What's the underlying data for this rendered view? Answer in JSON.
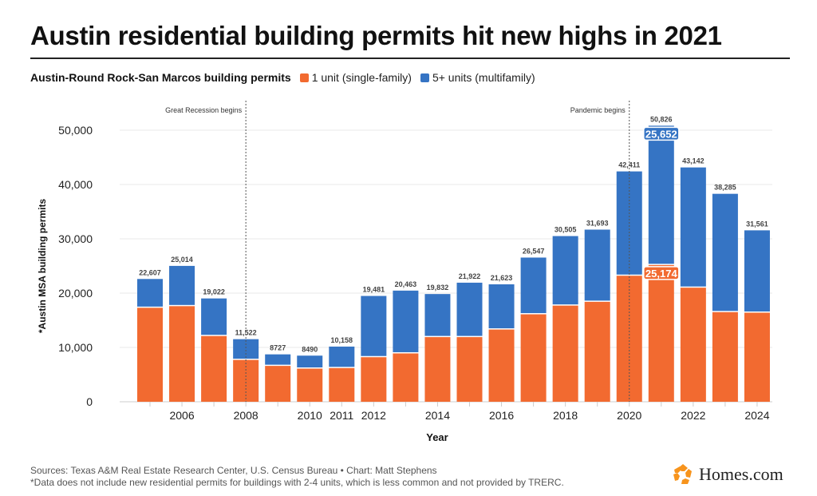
{
  "title": "Austin residential building permits hit new highs in 2021",
  "legend": {
    "title": "Austin-Round Rock-San Marcos building permits",
    "items": [
      {
        "label": "1 unit (single-family)",
        "color": "#f26a30"
      },
      {
        "label": "5+ units (multifamily)",
        "color": "#3574c4"
      }
    ]
  },
  "chart_data": {
    "type": "bar",
    "stacked": true,
    "xlabel": "Year",
    "ylabel": "*Austin MSA building permits",
    "ylim": [
      0,
      50000
    ],
    "yticks": [
      0,
      10000,
      20000,
      30000,
      40000,
      50000
    ],
    "ytick_labels": [
      "0",
      "10,000",
      "20,000",
      "30,000",
      "40,000",
      "50,000"
    ],
    "categories": [
      2005,
      2006,
      2007,
      2008,
      2009,
      2010,
      2011,
      2012,
      2013,
      2014,
      2015,
      2016,
      2017,
      2018,
      2019,
      2020,
      2021,
      2022,
      2023,
      2024
    ],
    "xtick_labels": {
      "2006": "2006",
      "2008": "2008",
      "2010": "2010",
      "2011": "2011",
      "2012": "2012",
      "2014": "2014",
      "2016": "2016",
      "2018": "2018",
      "2020": "2020",
      "2022": "2022",
      "2024": "2024"
    },
    "series": [
      {
        "name": "1 unit (single-family)",
        "color": "#f26a30",
        "values": [
          17300,
          17600,
          12100,
          7700,
          6600,
          6100,
          6200,
          8200,
          8900,
          11900,
          11900,
          13300,
          16100,
          17700,
          18400,
          23200,
          25174,
          21000,
          16500,
          16400
        ]
      },
      {
        "name": "5+ units (multifamily)",
        "color": "#3574c4",
        "values": [
          5307,
          7414,
          6922,
          3822,
          2127,
          2390,
          3958,
          11281,
          11563,
          7932,
          10022,
          8323,
          10447,
          12805,
          13293,
          19211,
          25652,
          22142,
          21785,
          15161
        ]
      }
    ],
    "totals": [
      22607,
      25014,
      19022,
      11522,
      8727,
      8490,
      10158,
      19481,
      20463,
      19832,
      21922,
      21623,
      26547,
      30505,
      31693,
      42411,
      50826,
      43142,
      38285,
      31561
    ],
    "total_labels": [
      "22,607",
      "25,014",
      "19,022",
      "11,522",
      "8727",
      "8490",
      "10,158",
      "19,481",
      "20,463",
      "19,832",
      "21,922",
      "21,623",
      "26,547",
      "30,505",
      "31,693",
      "42,411",
      "50,826",
      "43,142",
      "38,285",
      "31,561"
    ],
    "highlights": [
      {
        "year": 2021,
        "series": "5+ units (multifamily)",
        "label": "25,652"
      },
      {
        "year": 2021,
        "series": "1 unit (single-family)",
        "label": "25,174"
      }
    ],
    "annotations": [
      {
        "x": 2008,
        "label": "Great Recession begins"
      },
      {
        "x": 2020,
        "label": "Pandemic begins"
      }
    ],
    "grid": true,
    "legend_placement": "top-left"
  },
  "footer": {
    "sources": "Sources: Texas A&M Real Estate Research Center, U.S. Census Bureau • Chart: Matt Stephens",
    "note": "*Data does not include new residential permits for buildings with 2-4 units, which is less common and not provided by TRERC."
  },
  "logo": {
    "text": "Homes.com",
    "icon": "homes-com-logo-icon"
  }
}
